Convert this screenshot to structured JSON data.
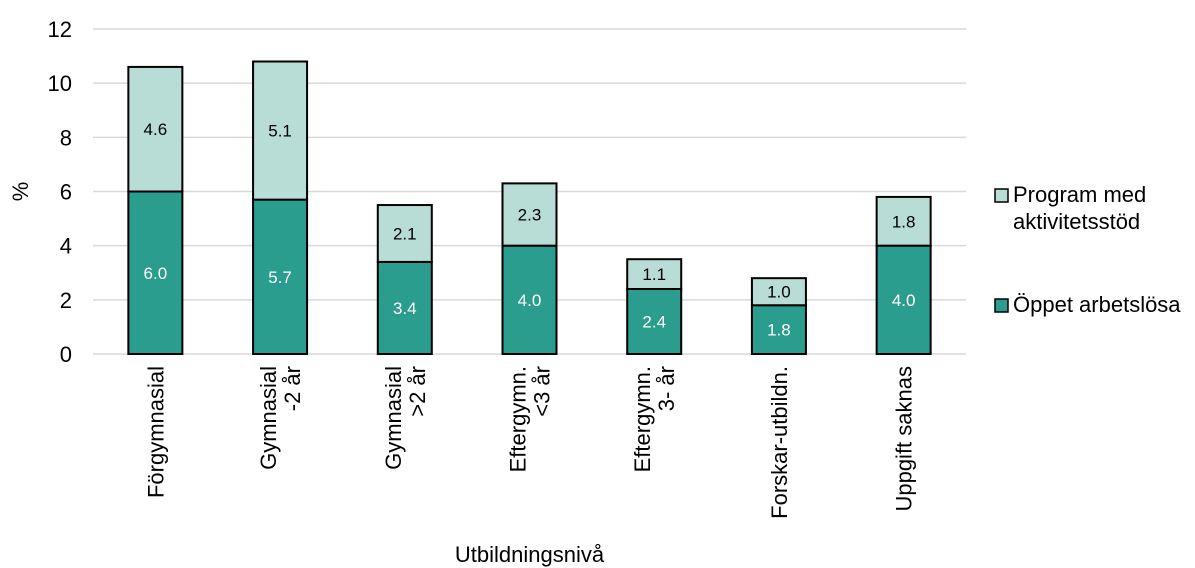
{
  "chart_data": {
    "type": "bar",
    "stacked": true,
    "xlabel": "Utbildningsnivå",
    "ylabel": "%",
    "ylim": [
      0,
      12
    ],
    "yticks": [
      "0",
      "2",
      "4",
      "6",
      "8",
      "10",
      "12"
    ],
    "grid": "horizontal",
    "legend_position": "right",
    "categories": [
      [
        "Förgymnasial"
      ],
      [
        "Gymnasial",
        "-2 år"
      ],
      [
        "Gymnasial",
        ">2 år"
      ],
      [
        "Eftergymn.",
        "<3 år"
      ],
      [
        "Eftergymn.",
        "3- år"
      ],
      [
        "Forskar-utbildn."
      ],
      [
        "Uppgift saknas"
      ]
    ],
    "series": [
      {
        "name": "Öppet arbetslösa",
        "legend_lines": [
          "Öppet arbetslösa"
        ],
        "color": "#2a9d8f",
        "label_color": "#ffffff",
        "values": [
          6.0,
          5.7,
          3.4,
          4.0,
          2.4,
          1.8,
          4.0
        ],
        "labels": [
          "6.0",
          "5.7",
          "3.4",
          "4.0",
          "2.4",
          "1.8",
          "4.0"
        ]
      },
      {
        "name": "Program med aktivitetsstöd",
        "legend_lines": [
          "Program med",
          "aktivitetsstöd"
        ],
        "color": "#b8dcd6",
        "label_color": "#000000",
        "values": [
          4.6,
          5.1,
          2.1,
          2.3,
          1.1,
          1.0,
          1.8
        ],
        "labels": [
          "4.6",
          "5.1",
          "2.1",
          "2.3",
          "1.1",
          "1.0",
          "1.8"
        ]
      }
    ]
  }
}
